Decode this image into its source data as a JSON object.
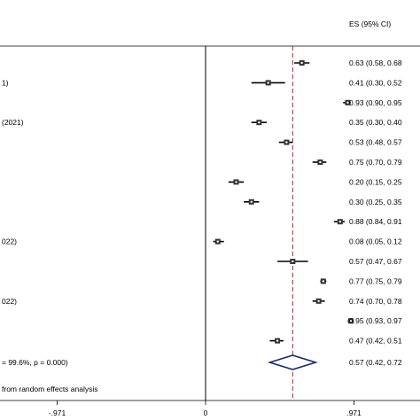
{
  "chart_data": {
    "type": "forest",
    "header": "ES (95% CI)",
    "studies": [
      {
        "label": "",
        "es": 0.63,
        "lo": 0.58,
        "hi": 0.68,
        "text": "0.63 (0.58, 0.68"
      },
      {
        "label": "1)",
        "es": 0.41,
        "lo": 0.3,
        "hi": 0.52,
        "text": "0.41 (0.30, 0.52"
      },
      {
        "label": "",
        "es": 0.93,
        "lo": 0.9,
        "hi": 0.95,
        "text": "0.93 (0.90, 0.95"
      },
      {
        "label": "(2021)",
        "es": 0.35,
        "lo": 0.3,
        "hi": 0.4,
        "text": "0.35 (0.30, 0.40"
      },
      {
        "label": "",
        "es": 0.53,
        "lo": 0.48,
        "hi": 0.57,
        "text": "0.53 (0.48, 0.57"
      },
      {
        "label": "",
        "es": 0.75,
        "lo": 0.7,
        "hi": 0.79,
        "text": "0.75 (0.70, 0.79"
      },
      {
        "label": "",
        "es": 0.2,
        "lo": 0.15,
        "hi": 0.25,
        "text": "0.20 (0.15, 0.25"
      },
      {
        "label": "",
        "es": 0.3,
        "lo": 0.25,
        "hi": 0.35,
        "text": "0.30 (0.25, 0.35"
      },
      {
        "label": "",
        "es": 0.88,
        "lo": 0.84,
        "hi": 0.91,
        "text": "0.88 (0.84, 0.91"
      },
      {
        "label": "022)",
        "es": 0.08,
        "lo": 0.05,
        "hi": 0.12,
        "text": "0.08 (0.05, 0.12"
      },
      {
        "label": "",
        "es": 0.57,
        "lo": 0.47,
        "hi": 0.67,
        "text": "0.57 (0.47, 0.67"
      },
      {
        "label": "",
        "es": 0.77,
        "lo": 0.75,
        "hi": 0.79,
        "text": "0.77 (0.75, 0.79"
      },
      {
        "label": "022)",
        "es": 0.74,
        "lo": 0.7,
        "hi": 0.78,
        "text": "0.74 (0.70, 0.78"
      },
      {
        "label": "",
        "es": 0.95,
        "lo": 0.93,
        "hi": 0.97,
        "text": "0.95 (0.93, 0.97"
      },
      {
        "label": "",
        "es": 0.47,
        "lo": 0.42,
        "hi": 0.51,
        "text": "0.47 (0.42, 0.51"
      }
    ],
    "overall": {
      "label": "= 99.6%, p = 0.000)",
      "es": 0.57,
      "lo": 0.42,
      "hi": 0.72,
      "text": "0.57 (0.42, 0.72"
    },
    "note": "from random effects analysis",
    "x_ticks": [
      {
        "value": -0.971,
        "label": "-.971"
      },
      {
        "value": 0,
        "label": "0"
      },
      {
        "value": 0.971,
        "label": ".971"
      }
    ],
    "null_line": 0,
    "pooled_line": 0.57,
    "colors": {
      "ink": "#000000",
      "pooled_line": "#b22222",
      "diamond": "#1a2a6c"
    }
  }
}
